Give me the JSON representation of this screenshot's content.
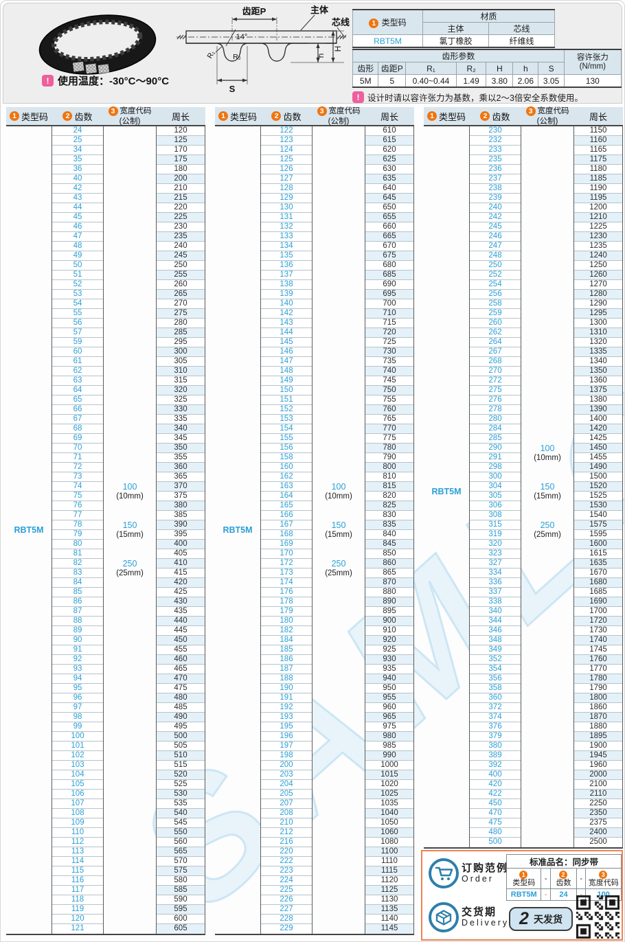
{
  "top": {
    "temp_note": "使用温度：-30°C～90°C",
    "diagram": {
      "pitch": "齿距P",
      "body": "主体",
      "cord": "芯线",
      "angle": "14°",
      "r1": "R₁",
      "r2": "R₂",
      "s": "S",
      "dim_h": "h",
      "dim_H": "H"
    }
  },
  "spec1": {
    "n": "1",
    "title": "类型码",
    "material": "材质",
    "body": "主体",
    "cord": "芯线",
    "code": "RBT5M",
    "body_v": "氯丁橡胶",
    "cord_v": "纤维线"
  },
  "spec2": {
    "title": "齿形参数",
    "tension": "容许张力",
    "tension_unit": "(N/mm)",
    "h": [
      "齿形",
      "齿距P",
      "R₁",
      "R₂",
      "H",
      "h",
      "S"
    ],
    "v": [
      "5M",
      "5",
      "0.40~0.44",
      "1.49",
      "3.80",
      "2.06",
      "3.05"
    ],
    "tension_v": "130"
  },
  "design_note": "设计时请以容许张力为基数，乘以2～3倍安全系数使用。",
  "main_header": {
    "n1": "1",
    "label1": "类型码",
    "n2": "2",
    "label2": "齿数",
    "n3": "3",
    "label3": "宽度代码",
    "label3_sub": "(公制)",
    "label4": "周长"
  },
  "watermark": "SAMLO",
  "tables": [
    {
      "type_code": "RBT5M",
      "type_row": 41.5,
      "width_codes": [
        {
          "code": "100",
          "mm": "(10mm)",
          "row": 37
        },
        {
          "code": "150",
          "mm": "(15mm)",
          "row": 41
        },
        {
          "code": "250",
          "mm": "(25mm)",
          "row": 45
        }
      ],
      "teeth": [
        24,
        25,
        34,
        35,
        36,
        40,
        42,
        43,
        44,
        45,
        46,
        47,
        48,
        49,
        50,
        51,
        52,
        53,
        54,
        55,
        56,
        57,
        59,
        60,
        61,
        62,
        63,
        64,
        65,
        66,
        67,
        68,
        69,
        70,
        71,
        72,
        73,
        74,
        75,
        76,
        77,
        78,
        79,
        80,
        81,
        82,
        83,
        84,
        85,
        86,
        87,
        88,
        89,
        90,
        91,
        92,
        93,
        94,
        95,
        96,
        97,
        98,
        99,
        100,
        101,
        102,
        103,
        104,
        105,
        106,
        107,
        108,
        109,
        110,
        112,
        113,
        114,
        115,
        116,
        117,
        118,
        119,
        120,
        121
      ],
      "lengths": [
        120,
        125,
        170,
        175,
        180,
        200,
        210,
        215,
        220,
        225,
        230,
        235,
        240,
        245,
        250,
        255,
        260,
        265,
        270,
        275,
        280,
        285,
        295,
        300,
        305,
        310,
        315,
        320,
        325,
        330,
        335,
        340,
        345,
        350,
        355,
        360,
        365,
        370,
        375,
        380,
        385,
        390,
        395,
        400,
        405,
        410,
        415,
        420,
        425,
        430,
        435,
        440,
        445,
        450,
        455,
        460,
        465,
        470,
        475,
        480,
        485,
        490,
        495,
        500,
        505,
        510,
        515,
        520,
        525,
        530,
        535,
        540,
        545,
        550,
        560,
        565,
        570,
        575,
        580,
        585,
        590,
        595,
        600,
        605
      ]
    },
    {
      "type_code": "RBT5M",
      "type_row": 41.5,
      "width_codes": [
        {
          "code": "100",
          "mm": "(10mm)",
          "row": 37
        },
        {
          "code": "150",
          "mm": "(15mm)",
          "row": 41
        },
        {
          "code": "250",
          "mm": "(25mm)",
          "row": 45
        }
      ],
      "teeth": [
        122,
        123,
        124,
        125,
        126,
        127,
        128,
        129,
        130,
        131,
        132,
        133,
        134,
        135,
        136,
        137,
        138,
        139,
        140,
        142,
        143,
        144,
        145,
        146,
        147,
        148,
        149,
        150,
        151,
        152,
        153,
        154,
        155,
        156,
        158,
        160,
        162,
        163,
        164,
        165,
        166,
        167,
        168,
        169,
        170,
        172,
        173,
        174,
        176,
        178,
        179,
        180,
        182,
        184,
        185,
        186,
        187,
        188,
        190,
        191,
        192,
        193,
        195,
        196,
        197,
        198,
        200,
        203,
        204,
        205,
        207,
        208,
        210,
        212,
        216,
        220,
        222,
        223,
        224,
        225,
        226,
        227,
        228,
        229
      ],
      "lengths": [
        610,
        615,
        620,
        625,
        630,
        635,
        640,
        645,
        650,
        655,
        660,
        665,
        670,
        675,
        680,
        685,
        690,
        695,
        700,
        710,
        715,
        720,
        725,
        730,
        735,
        740,
        745,
        750,
        755,
        760,
        765,
        770,
        775,
        780,
        790,
        800,
        810,
        815,
        820,
        825,
        830,
        835,
        840,
        845,
        850,
        860,
        865,
        870,
        880,
        890,
        895,
        900,
        910,
        920,
        925,
        930,
        935,
        940,
        950,
        955,
        960,
        965,
        975,
        980,
        985,
        990,
        1000,
        1015,
        1020,
        1025,
        1035,
        1040,
        1050,
        1060,
        1080,
        1100,
        1110,
        1115,
        1120,
        1125,
        1130,
        1135,
        1140,
        1145
      ]
    },
    {
      "type_code": "RBT5M",
      "type_row": 37.5,
      "width_codes": [
        {
          "code": "100",
          "mm": "(10mm)",
          "row": 33
        },
        {
          "code": "150",
          "mm": "(15mm)",
          "row": 37
        },
        {
          "code": "250",
          "mm": "(25mm)",
          "row": 41
        }
      ],
      "teeth": [
        230,
        232,
        233,
        235,
        236,
        237,
        238,
        239,
        240,
        242,
        245,
        246,
        247,
        248,
        250,
        252,
        254,
        256,
        258,
        259,
        260,
        262,
        264,
        267,
        268,
        270,
        272,
        275,
        276,
        278,
        280,
        284,
        285,
        290,
        291,
        298,
        300,
        304,
        305,
        306,
        308,
        315,
        319,
        320,
        323,
        327,
        334,
        336,
        337,
        338,
        340,
        344,
        346,
        348,
        349,
        352,
        354,
        356,
        358,
        360,
        372,
        374,
        376,
        379,
        380,
        389,
        392,
        400,
        420,
        422,
        450,
        470,
        475,
        480,
        500
      ],
      "lengths": [
        1150,
        1160,
        1165,
        1175,
        1180,
        1185,
        1190,
        1195,
        1200,
        1210,
        1225,
        1230,
        1235,
        1240,
        1250,
        1260,
        1270,
        1280,
        1290,
        1295,
        1300,
        1310,
        1320,
        1335,
        1340,
        1350,
        1360,
        1375,
        1380,
        1390,
        1400,
        1420,
        1425,
        1450,
        1455,
        1490,
        1500,
        1520,
        1525,
        1530,
        1540,
        1575,
        1595,
        1600,
        1615,
        1635,
        1670,
        1680,
        1685,
        1690,
        1700,
        1720,
        1730,
        1740,
        1745,
        1760,
        1770,
        1780,
        1790,
        1800,
        1860,
        1870,
        1880,
        1895,
        1900,
        1945,
        1960,
        2000,
        2100,
        2110,
        2250,
        2350,
        2375,
        2400,
        2500
      ]
    }
  ],
  "order": {
    "title_cn": "订购范例",
    "title_en": "Order",
    "product": "标准品名：同步带",
    "n1": "1",
    "c1": "类型码",
    "n2": "2",
    "c2": "齿数",
    "n3": "3",
    "c3": "宽度代码",
    "dash": "-",
    "v1": "RBT5M",
    "v2": "24",
    "v3": "100",
    "delivery_cn": "交货期",
    "delivery_en": "Delivery",
    "days": "2",
    "ship": "天发货"
  }
}
